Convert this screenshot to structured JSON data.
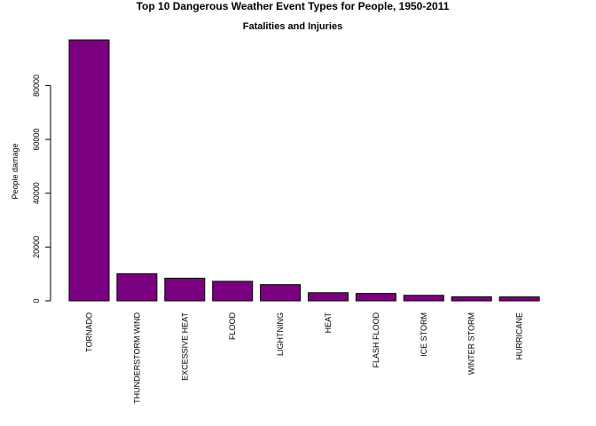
{
  "chart_data": {
    "type": "bar",
    "title": "Top 10 Dangerous Weather Event Types for People, 1950-2011",
    "subtitle": "Fatalities and Injuries",
    "xlabel": "",
    "ylabel": "People damage",
    "categories": [
      "TORNADO",
      "THUNDERSTORM WIND",
      "EXCESSIVE HEAT",
      "FLOOD",
      "LIGHTNING",
      "HEAT",
      "FLASH FLOOD",
      "ICE STORM",
      "WINTER STORM",
      "HURRICANE"
    ],
    "values": [
      96979,
      10089,
      8428,
      7259,
      6046,
      3037,
      2755,
      2064,
      1527,
      1466
    ],
    "yticks": [
      0,
      20000,
      40000,
      60000,
      80000
    ],
    "ytick_labels": [
      "0",
      "20000",
      "40000",
      "60000",
      "80000"
    ],
    "ylim": [
      0,
      96979
    ],
    "bar_color": "#7b0080",
    "grid": false,
    "legend": "none"
  }
}
